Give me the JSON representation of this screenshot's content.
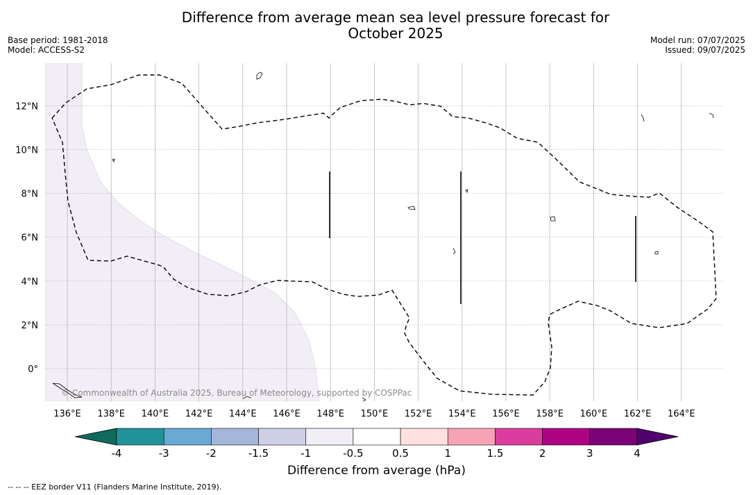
{
  "title_line1": "Difference from average mean sea level pressure forecast for",
  "title_line2": "October 2025",
  "base_period": "Base period: 1981-2018",
  "model": "Model: ACCESS-S2",
  "model_run": "Model run: 07/07/2025",
  "issued": "Issued: 09/07/2025",
  "copyright": "© Commonwealth of Australia 2025, Bureau of Meteorology, supported by COSPPac",
  "colorbar_title": "Difference from average (hPa)",
  "footnote": "--  --  -- EEZ border V11 (Flanders Marine Institute, 2019).",
  "lon_ticks": [
    "136°E",
    "138°E",
    "140°E",
    "142°E",
    "144°E",
    "146°E",
    "148°E",
    "150°E",
    "152°E",
    "154°E",
    "156°E",
    "158°E",
    "160°E",
    "162°E",
    "164°E"
  ],
  "lat_ticks": [
    "12°N",
    "10°N",
    "8°N",
    "6°N",
    "4°N",
    "2°N",
    "0°"
  ],
  "colorbar_ticks": [
    "-4",
    "-3",
    "-2",
    "-1.5",
    "-1",
    "-0.5",
    "0.5",
    "1",
    "1.5",
    "2",
    "3",
    "4"
  ],
  "colorbar_colors": [
    "#0e6b5c",
    "#22939b",
    "#69a9d4",
    "#a4b7da",
    "#cfcfe6",
    "#f2eef6",
    "#ffffff",
    "#fde0df",
    "#f7a3b6",
    "#da3d9e",
    "#ad0383",
    "#7b0377",
    "#4e026b"
  ],
  "region_fill_color": "#f2eef6",
  "map": {
    "lon_range": [
      135,
      166
    ],
    "lat_range": [
      -1.5,
      14
    ],
    "anomaly_region_label": "-1 to -0.5"
  }
}
